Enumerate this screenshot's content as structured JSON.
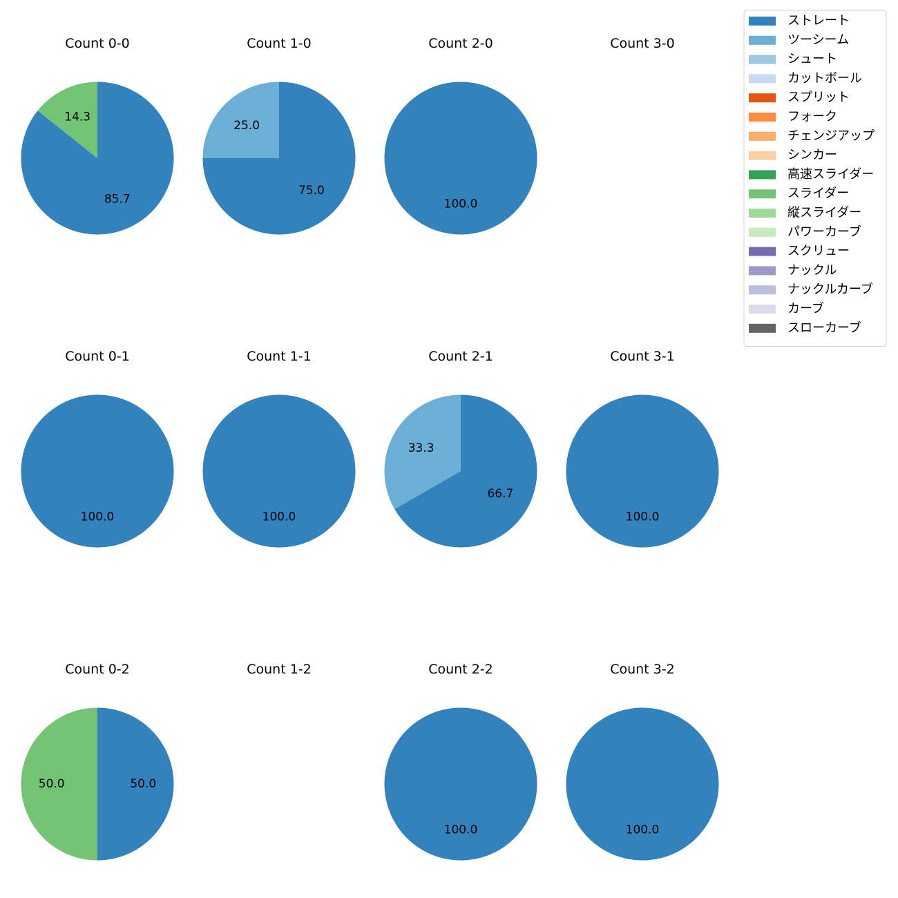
{
  "chart_data": {
    "type": "pie",
    "value_format": "one-decimal percent",
    "legend": {
      "placement": "top-right",
      "entries": [
        {
          "name": "ストレート",
          "color": "#3182bd"
        },
        {
          "name": "ツーシーム",
          "color": "#6baed6"
        },
        {
          "name": "シュート",
          "color": "#9ecae1"
        },
        {
          "name": "カットボール",
          "color": "#c6dbef"
        },
        {
          "name": "スプリット",
          "color": "#e6550d"
        },
        {
          "name": "フォーク",
          "color": "#fd8d3c"
        },
        {
          "name": "チェンジアップ",
          "color": "#fdae6b"
        },
        {
          "name": "シンカー",
          "color": "#fdd0a2"
        },
        {
          "name": "高速スライダー",
          "color": "#31a354"
        },
        {
          "name": "スライダー",
          "color": "#74c476"
        },
        {
          "name": "縦スライダー",
          "color": "#a1d99b"
        },
        {
          "name": "パワーカーブ",
          "color": "#c7e9c0"
        },
        {
          "name": "スクリュー",
          "color": "#756bb1"
        },
        {
          "name": "ナックル",
          "color": "#9e9ac8"
        },
        {
          "name": "ナックルカーブ",
          "color": "#bcbddc"
        },
        {
          "name": "カーブ",
          "color": "#dadaeb"
        },
        {
          "name": "スローカーブ",
          "color": "#636363"
        }
      ]
    },
    "charts": [
      {
        "title": "Count 0-0",
        "slices": [
          {
            "pitch": "ストレート",
            "value": 85.7
          },
          {
            "pitch": "スライダー",
            "value": 14.3
          }
        ]
      },
      {
        "title": "Count 1-0",
        "slices": [
          {
            "pitch": "ストレート",
            "value": 75.0
          },
          {
            "pitch": "ツーシーム",
            "value": 25.0
          }
        ]
      },
      {
        "title": "Count 2-0",
        "slices": [
          {
            "pitch": "ストレート",
            "value": 100.0
          }
        ]
      },
      {
        "title": "Count 3-0",
        "slices": []
      },
      {
        "title": "Count 0-1",
        "slices": [
          {
            "pitch": "ストレート",
            "value": 100.0
          }
        ]
      },
      {
        "title": "Count 1-1",
        "slices": [
          {
            "pitch": "ストレート",
            "value": 100.0
          }
        ]
      },
      {
        "title": "Count 2-1",
        "slices": [
          {
            "pitch": "ストレート",
            "value": 66.7
          },
          {
            "pitch": "ツーシーム",
            "value": 33.3
          }
        ]
      },
      {
        "title": "Count 3-1",
        "slices": [
          {
            "pitch": "ストレート",
            "value": 100.0
          }
        ]
      },
      {
        "title": "Count 0-2",
        "slices": [
          {
            "pitch": "ストレート",
            "value": 50.0
          },
          {
            "pitch": "スライダー",
            "value": 50.0
          }
        ]
      },
      {
        "title": "Count 1-2",
        "slices": []
      },
      {
        "title": "Count 2-2",
        "slices": [
          {
            "pitch": "ストレート",
            "value": 100.0
          }
        ]
      },
      {
        "title": "Count 3-2",
        "slices": [
          {
            "pitch": "ストレート",
            "value": 100.0
          }
        ]
      }
    ]
  }
}
